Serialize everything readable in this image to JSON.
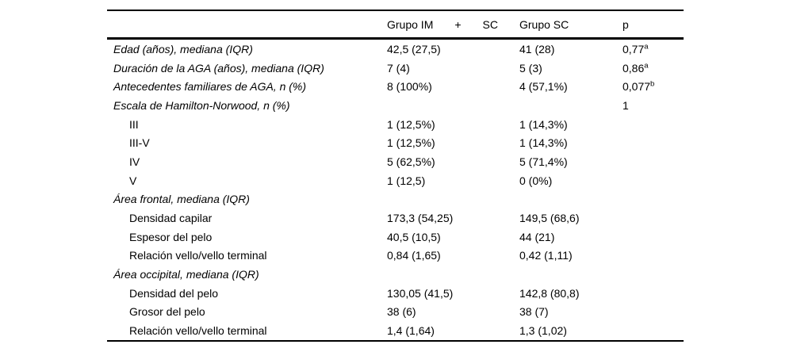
{
  "table": {
    "colors": {
      "text": "#000000",
      "rule": "#000000",
      "background": "#ffffff"
    },
    "header": {
      "col1": "",
      "group1_parts": [
        "Grupo IM",
        "+",
        "SC"
      ],
      "group1_full": "Grupo IM + SC",
      "group2": "Grupo SC",
      "p": "p"
    },
    "rows": [
      {
        "label": "Edad (años), mediana (IQR)",
        "italic": true,
        "indent": false,
        "c2": "42,5 (27,5)",
        "c3": "41 (28)",
        "p": "0,77",
        "p_sup": "a"
      },
      {
        "label": "Duración de la AGA (años), mediana (IQR)",
        "italic": true,
        "indent": false,
        "c2": "7 (4)",
        "c3": "5 (3)",
        "p": "0,86",
        "p_sup": "a"
      },
      {
        "label": "Antecedentes familiares de AGA, n (%)",
        "italic": true,
        "indent": false,
        "c2": "8 (100%)",
        "c3": "4 (57,1%)",
        "p": "0,077",
        "p_sup": "b"
      },
      {
        "label": "Escala de Hamilton-Norwood, n (%)",
        "italic": true,
        "indent": false,
        "c2": "",
        "c3": "",
        "p": "1",
        "p_sup": ""
      },
      {
        "label": "III",
        "italic": false,
        "indent": true,
        "c2": "1 (12,5%)",
        "c3": "1 (14,3%)",
        "p": "",
        "p_sup": ""
      },
      {
        "label": "III-V",
        "italic": false,
        "indent": true,
        "c2": "1 (12,5%)",
        "c3": "1 (14,3%)",
        "p": "",
        "p_sup": ""
      },
      {
        "label": "IV",
        "italic": false,
        "indent": true,
        "c2": "5 (62,5%)",
        "c3": "5 (71,4%)",
        "p": "",
        "p_sup": ""
      },
      {
        "label": "V",
        "italic": false,
        "indent": true,
        "c2": "1 (12,5)",
        "c3": "0 (0%)",
        "p": "",
        "p_sup": ""
      },
      {
        "label": "Área frontal, mediana (IQR)",
        "italic": true,
        "indent": false,
        "c2": "",
        "c3": "",
        "p": "",
        "p_sup": ""
      },
      {
        "label": "Densidad capilar",
        "italic": false,
        "indent": true,
        "c2": "173,3 (54,25)",
        "c3": "149,5 (68,6)",
        "p": "",
        "p_sup": ""
      },
      {
        "label": "Espesor del pelo",
        "italic": false,
        "indent": true,
        "c2": "40,5 (10,5)",
        "c3": "44 (21)",
        "p": "",
        "p_sup": ""
      },
      {
        "label": "Relación vello/vello terminal",
        "italic": false,
        "indent": true,
        "c2": "0,84 (1,65)",
        "c3": "0,42 (1,11)",
        "p": "",
        "p_sup": ""
      },
      {
        "label": "Área occipital, mediana (IQR)",
        "italic": true,
        "indent": false,
        "c2": "",
        "c3": "",
        "p": "",
        "p_sup": ""
      },
      {
        "label": "Densidad del pelo",
        "italic": false,
        "indent": true,
        "c2": "130,05 (41,5)",
        "c3": "142,8 (80,8)",
        "p": "",
        "p_sup": ""
      },
      {
        "label": "Grosor del pelo",
        "italic": false,
        "indent": true,
        "c2": "38 (6)",
        "c3": "38 (7)",
        "p": "",
        "p_sup": ""
      },
      {
        "label": "Relación vello/vello terminal",
        "italic": false,
        "indent": true,
        "c2": "1,4 (1,64)",
        "c3": "1,3 (1,02)",
        "p": "",
        "p_sup": ""
      }
    ]
  }
}
